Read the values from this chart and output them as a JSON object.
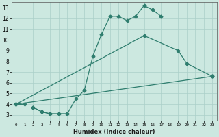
{
  "xlabel": "Humidex (Indice chaleur)",
  "bg_color": "#cce8e0",
  "grid_color": "#aacfc8",
  "line_color": "#2e7d6e",
  "xlim": [
    -0.5,
    23.5
  ],
  "ylim": [
    2.5,
    13.5
  ],
  "yticks": [
    3,
    4,
    5,
    6,
    7,
    8,
    9,
    10,
    11,
    12,
    13
  ],
  "line1_x": [
    0,
    1
  ],
  "line1_y": [
    4,
    4
  ],
  "line2_x": [
    2,
    3,
    4,
    5,
    6,
    7,
    8,
    9,
    10,
    11,
    12,
    13,
    14,
    15,
    16,
    17
  ],
  "line2_y": [
    3.7,
    3.3,
    3.1,
    3.1,
    3.1,
    4.5,
    5.3,
    8.5,
    10.5,
    12.2,
    12.2,
    11.8,
    12.2,
    13.2,
    12.8,
    12.2
  ],
  "line3_x": [
    2,
    3,
    4,
    5,
    6
  ],
  "line3_y": [
    3.7,
    3.3,
    3.1,
    3.1,
    3.1
  ],
  "line4_x": [
    0,
    15,
    19,
    20,
    23
  ],
  "line4_y": [
    4,
    10.4,
    9.0,
    7.8,
    6.6
  ],
  "line5_x": [
    0,
    23
  ],
  "line5_y": [
    4,
    6.6
  ]
}
